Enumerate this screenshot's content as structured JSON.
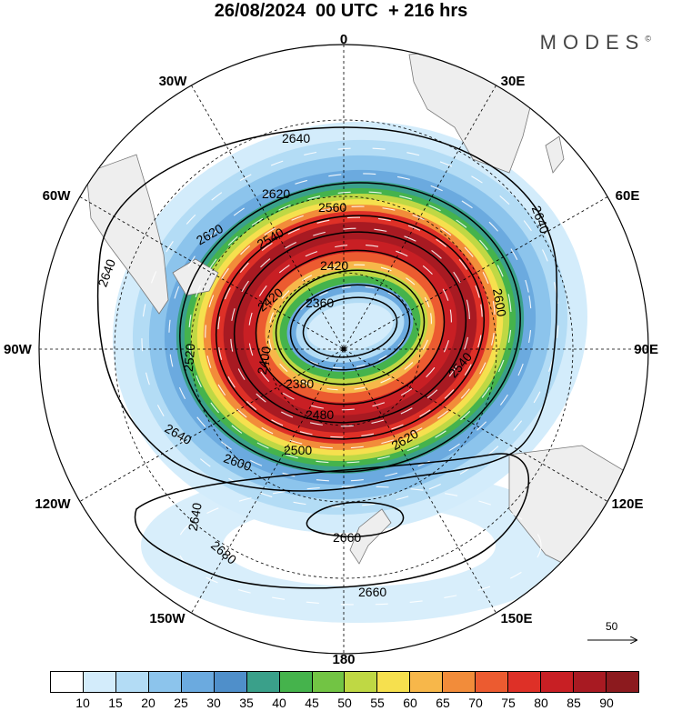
{
  "title": "26/08/2024  00 UTC  + 216 hrs",
  "brand": "MODES",
  "brand_mark": "©",
  "lon_labels": [
    {
      "id": "0",
      "text": "0"
    },
    {
      "id": "30E",
      "text": "30E"
    },
    {
      "id": "60E",
      "text": "60E"
    },
    {
      "id": "90E",
      "text": "90E"
    },
    {
      "id": "120E",
      "text": "120E"
    },
    {
      "id": "150E",
      "text": "150E"
    },
    {
      "id": "180",
      "text": "180"
    },
    {
      "id": "150W",
      "text": "150W"
    },
    {
      "id": "120W",
      "text": "120W"
    },
    {
      "id": "90W",
      "text": "90W"
    },
    {
      "id": "60W",
      "text": "60W"
    },
    {
      "id": "30W",
      "text": "30W"
    }
  ],
  "contour_labels": [
    "2640",
    "2620",
    "2620",
    "2640",
    "2640",
    "2560",
    "2540",
    "2420",
    "2420",
    "2360",
    "2400",
    "2380",
    "2480",
    "2500",
    "2520",
    "2600",
    "2640",
    "2600",
    "2540",
    "2620",
    "2640",
    "2660",
    "2680",
    "2660",
    "2660"
  ],
  "colorbar": {
    "colors": [
      "#ffffff",
      "#d3ecfb",
      "#b3dcf5",
      "#8cc4ec",
      "#6baadf",
      "#4f8fca",
      "#3aa08a",
      "#45b34c",
      "#72c444",
      "#bfd844",
      "#f6e04e",
      "#f7b74a",
      "#f28c3a",
      "#ec5b30",
      "#de3027",
      "#c81f24",
      "#a81a22",
      "#8c1a1e"
    ],
    "ticks": [
      "10",
      "15",
      "20",
      "25",
      "30",
      "35",
      "40",
      "45",
      "50",
      "55",
      "60",
      "65",
      "70",
      "75",
      "80",
      "85",
      "90"
    ]
  },
  "ref_vector": {
    "label": "50"
  }
}
